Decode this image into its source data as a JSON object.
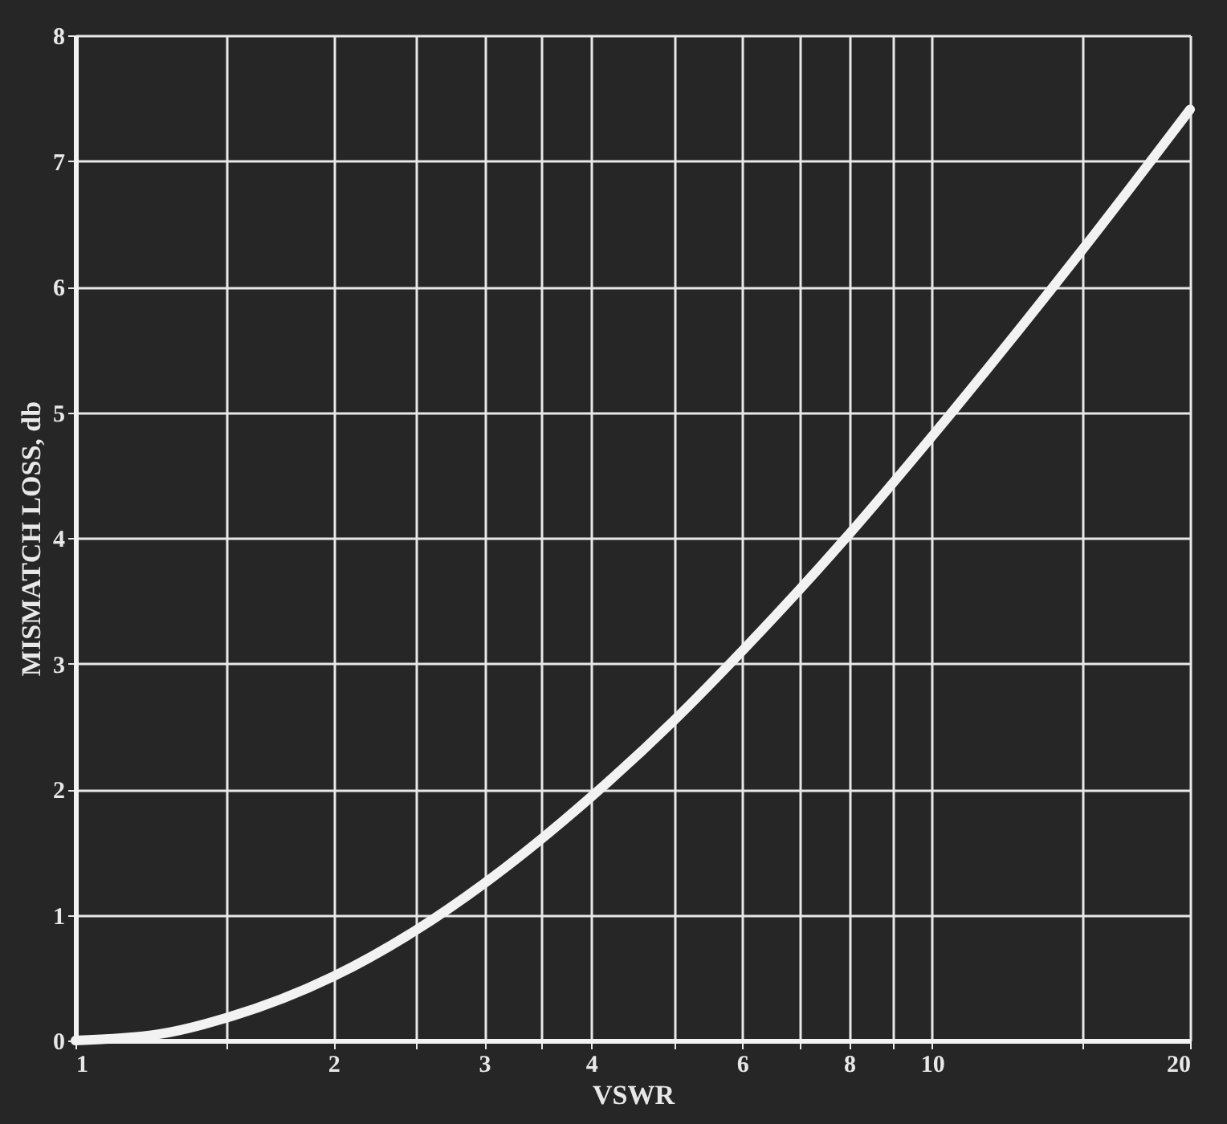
{
  "chart_data": {
    "type": "line",
    "xlabel": "VSWR",
    "ylabel": "MISMATCH LOSS, db",
    "x": [
      1,
      1.25,
      1.5,
      2,
      2.5,
      3,
      4,
      5,
      6,
      8,
      10,
      15,
      20
    ],
    "series": [
      {
        "color": "#f2f2f2",
        "values": [
          0,
          0.05,
          0.18,
          0.51,
          0.88,
          1.25,
          1.94,
          2.55,
          3.1,
          4.03,
          4.81,
          6.3,
          7.41
        ]
      }
    ],
    "xlim": [
      1,
      20
    ],
    "ylim": [
      0,
      8
    ],
    "log": "x",
    "xticks": [
      1,
      {
        "value": 1.5,
        "label": null
      },
      2,
      {
        "value": 2.5,
        "label": null
      },
      3,
      {
        "value": 3.5,
        "label": null
      },
      4,
      {
        "value": 5,
        "label": null
      },
      6,
      {
        "value": 7,
        "label": null
      },
      8,
      {
        "value": 9,
        "label": null
      },
      10,
      {
        "value": 15,
        "label": null
      },
      20
    ],
    "yticks": [
      0,
      1,
      2,
      3,
      4,
      5,
      6,
      7,
      8
    ],
    "grid": true,
    "marker": "none",
    "line_style": "solid"
  }
}
